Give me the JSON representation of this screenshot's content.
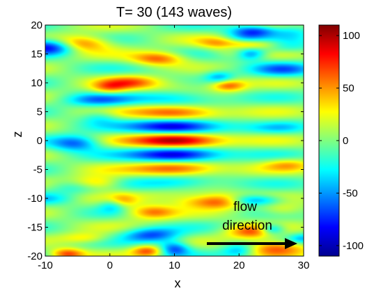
{
  "chart_data": {
    "type": "heatmap",
    "title": "T= 30   (143 waves)",
    "xlabel": "x",
    "ylabel": "z",
    "xlim": [
      -10,
      30
    ],
    "ylim": [
      -20,
      20
    ],
    "xticks": [
      -10,
      0,
      10,
      20,
      30
    ],
    "yticks": [
      -20,
      -15,
      -10,
      -5,
      0,
      5,
      10,
      15,
      20
    ],
    "xtick_labels": [
      "-10",
      "0",
      "10",
      "20",
      "30"
    ],
    "ytick_labels": [
      "-20",
      "-15",
      "-10",
      "-5",
      "0",
      "5",
      "10",
      "15",
      "20"
    ],
    "colorbar": {
      "range": [
        -110,
        110
      ],
      "ticks": [
        -100,
        -50,
        0,
        50,
        100
      ],
      "tick_labels": [
        "-100",
        "-50",
        "0",
        "50",
        "100"
      ],
      "colormap": "jet"
    },
    "streaks": [
      {
        "x": 10,
        "z": 0,
        "sign": 1,
        "amplitude": 110
      },
      {
        "x": 10,
        "z": 2.5,
        "sign": -1,
        "amplitude": 100
      },
      {
        "x": 10,
        "z": -2.5,
        "sign": -1,
        "amplitude": 100
      },
      {
        "x": 10,
        "z": 5,
        "sign": 1,
        "amplitude": 85
      },
      {
        "x": 10,
        "z": -5,
        "sign": 1,
        "amplitude": 80
      },
      {
        "x": 10,
        "z": 7.5,
        "sign": -1,
        "amplitude": 55
      },
      {
        "x": 10,
        "z": -7.5,
        "sign": -1,
        "amplitude": 55
      }
    ],
    "annotation": {
      "text_line1": "flow",
      "text_line2": "direction",
      "arrow_from": [
        14.5,
        -18
      ],
      "arrow_to": [
        29,
        -18
      ]
    },
    "grid": false,
    "legend": "none"
  }
}
